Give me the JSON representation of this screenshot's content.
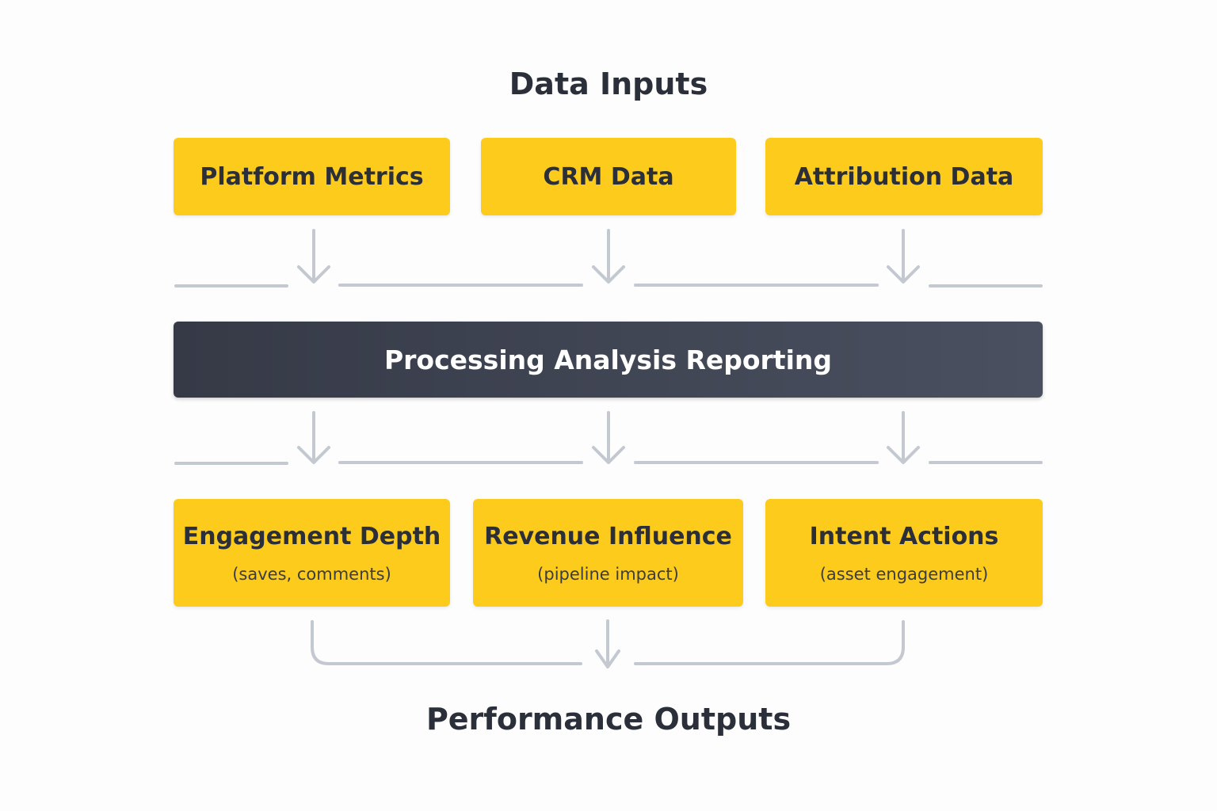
{
  "header": {
    "title": "Data Inputs"
  },
  "inputs": [
    {
      "label": "Platform Metrics"
    },
    {
      "label": "CRM Data"
    },
    {
      "label": "Attribution Data"
    }
  ],
  "processing": {
    "label": "Processing Analysis Reporting"
  },
  "outputs": [
    {
      "label": "Engagement Depth",
      "sub": "(saves, comments)"
    },
    {
      "label": "Revenue Influence",
      "sub": "(pipeline impact)"
    },
    {
      "label": "Intent Actions",
      "sub": "(asset engagement)"
    }
  ],
  "footer": {
    "title": "Performance Outputs"
  },
  "colors": {
    "box": "#fccb1b",
    "bar": "#3a3e4b",
    "connector": "#c3c8d1",
    "text": "#2b2f3a"
  }
}
